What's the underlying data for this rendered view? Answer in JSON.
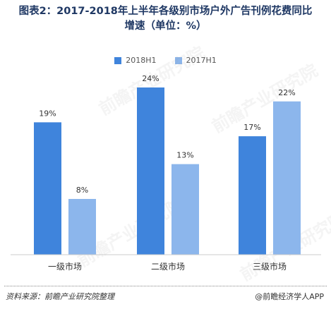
{
  "title_line1": "图表2：2017-2018年上半年各级别市场户外广告刊例花费同比",
  "title_line2": "增速（单位：%）",
  "source": "资料来源：前瞻产业研究院整理",
  "brand": "@前瞻经济学人APP",
  "watermark": "前瞻产业研究院",
  "colors": {
    "s2018": "#3f84dc",
    "s2017": "#8cb6ec"
  },
  "chart_data": {
    "type": "bar",
    "title": "图表2：2017-2018年上半年各级别市场户外广告刊例花费同比增速（单位：%）",
    "categories": [
      "一级市场",
      "二级市场",
      "三级市场"
    ],
    "series": [
      {
        "name": "2018H1",
        "values": [
          19,
          24,
          17
        ],
        "labels": [
          "19%",
          "24%",
          "17%"
        ]
      },
      {
        "name": "2017H1",
        "values": [
          8,
          13,
          22
        ],
        "labels": [
          "8%",
          "13%",
          "22%"
        ]
      }
    ],
    "ylim": [
      0,
      24
    ],
    "xlabel": "",
    "ylabel": "",
    "grid": false,
    "legend": "top-center"
  }
}
